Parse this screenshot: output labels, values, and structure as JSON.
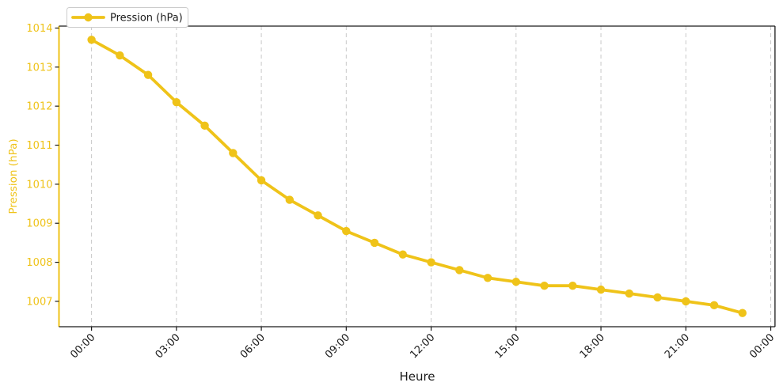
{
  "chart_data": {
    "type": "line",
    "title": "",
    "xlabel": "Heure",
    "ylabel": "Pression (hPa)",
    "categories": [
      "00:00",
      "01:00",
      "02:00",
      "03:00",
      "04:00",
      "05:00",
      "06:00",
      "07:00",
      "08:00",
      "09:00",
      "10:00",
      "11:00",
      "12:00",
      "13:00",
      "14:00",
      "15:00",
      "16:00",
      "17:00",
      "18:00",
      "19:00",
      "20:00",
      "21:00",
      "22:00",
      "23:00"
    ],
    "series": [
      {
        "name": "Pression (hPa)",
        "color": "#EFC319",
        "values": [
          1013.7,
          1013.3,
          1012.8,
          1012.1,
          1011.5,
          1010.8,
          1010.1,
          1009.6,
          1009.2,
          1008.8,
          1008.5,
          1008.2,
          1008.0,
          1007.8,
          1007.6,
          1007.5,
          1007.4,
          1007.4,
          1007.3,
          1007.2,
          1007.1,
          1007.0,
          1006.9,
          1006.7
        ]
      }
    ],
    "x_ticks": {
      "hours": [
        0,
        3,
        6,
        9,
        12,
        15,
        18,
        21,
        24
      ],
      "labels": [
        "00:00",
        "03:00",
        "06:00",
        "09:00",
        "12:00",
        "15:00",
        "18:00",
        "21:00",
        "00:00"
      ]
    },
    "y_ticks": [
      1007,
      1008,
      1009,
      1010,
      1011,
      1012,
      1013,
      1014
    ],
    "xlim_hours": [
      -1.15,
      24.15
    ],
    "ylim": [
      1006.35,
      1014.05
    ],
    "grid": "vertical-dashed",
    "legend_position": "top-left",
    "colors": {
      "series": "#EFC319",
      "y_tick_labels": "#EFC319",
      "x_tick_labels": "#1a1a1a",
      "spine_left": "#EFC319",
      "spine_other": "#1a1a1a",
      "gridline": "#c9c9c9",
      "tick_mark": "#1a1a1a",
      "legend_border": "#cccccc",
      "legend_background": "#ffffff"
    }
  }
}
